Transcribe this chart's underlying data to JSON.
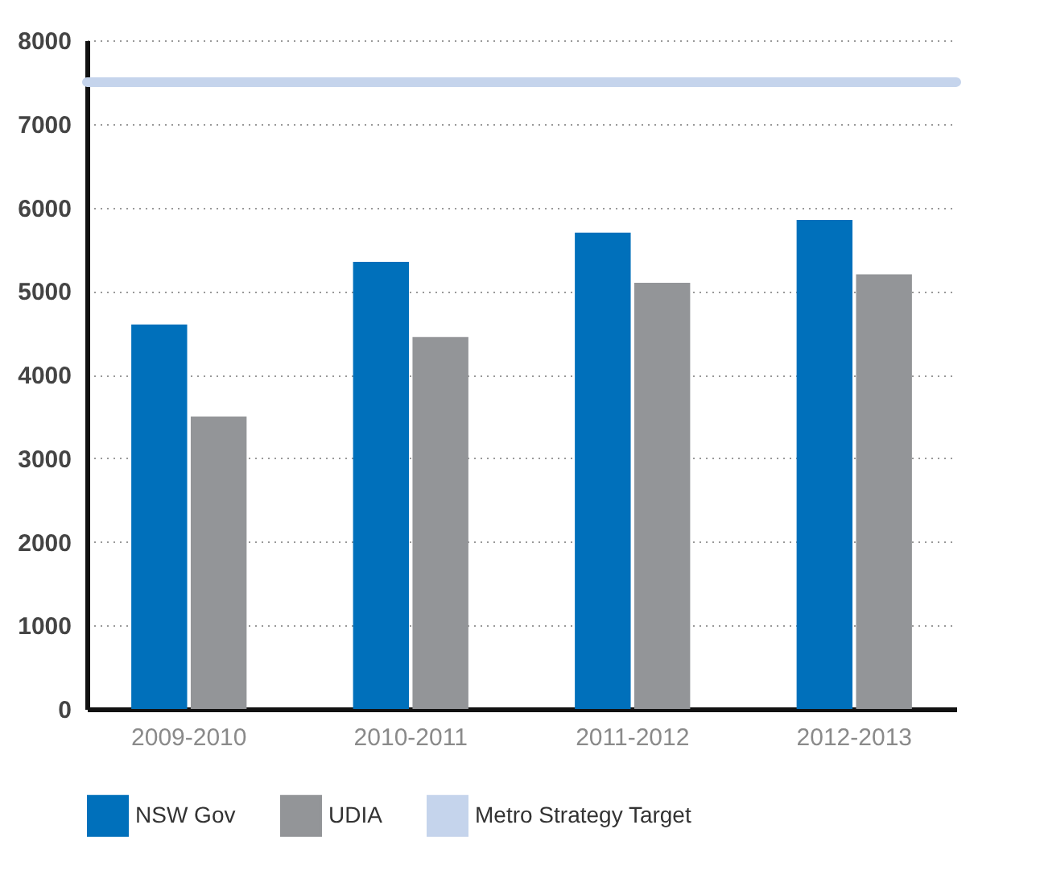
{
  "chart_data": {
    "type": "bar",
    "categories": [
      "2009-2010",
      "2010-2011",
      "2011-2012",
      "2012-2013"
    ],
    "series": [
      {
        "name": "NSW Gov",
        "color": "#0070bb",
        "values": [
          4600,
          5350,
          5700,
          5850
        ]
      },
      {
        "name": "UDIA",
        "color": "#939598",
        "values": [
          3500,
          4450,
          5100,
          5200
        ]
      }
    ],
    "ylim": [
      0,
      8000
    ],
    "yticks": [
      0,
      1000,
      2000,
      3000,
      4000,
      5000,
      6000,
      7000,
      8000
    ],
    "grid": "y",
    "legend": "bottom",
    "ref_lines": [
      {
        "axis": "y",
        "value": 7500,
        "label": "Metro Strategy Target",
        "color": "#c5d4ec"
      }
    ]
  }
}
